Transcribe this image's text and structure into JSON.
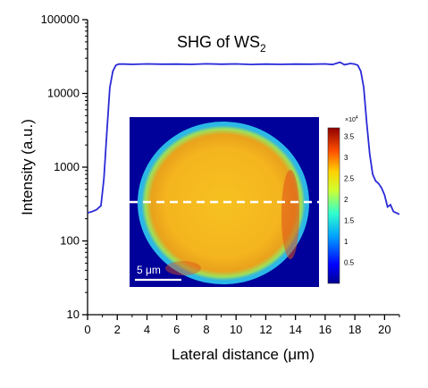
{
  "chart_data": {
    "type": "line",
    "title_main": "SHG of WS",
    "title_sub": "2",
    "xlabel": "Lateral distance (μm)",
    "ylabel": "Intensity (a.u.)",
    "xlim": [
      0,
      21
    ],
    "ylim": [
      10,
      100000
    ],
    "yscale": "log",
    "x_ticks": [
      0,
      2,
      4,
      6,
      8,
      10,
      12,
      14,
      16,
      18,
      20
    ],
    "y_ticks": [
      {
        "value": 10,
        "label": "10"
      },
      {
        "value": 100,
        "label": "100"
      },
      {
        "value": 1000,
        "label": "1000"
      },
      {
        "value": 10000,
        "label": "10000"
      },
      {
        "value": 100000,
        "label": "100000"
      }
    ],
    "line_color": "#2a2ad8",
    "series": [
      {
        "x": [
          0,
          0.3,
          0.6,
          0.9,
          1.1,
          1.3,
          1.5,
          1.7,
          1.9,
          2.1,
          2.5,
          3,
          4,
          5,
          6,
          7,
          8,
          9,
          10,
          11,
          12,
          13,
          14,
          15,
          16,
          16.5,
          17,
          17.3,
          17.7,
          18,
          18.2,
          18.4,
          18.6,
          18.8,
          19.0,
          19.2,
          19.4,
          19.6,
          19.8,
          20.0,
          20.2,
          20.4,
          20.6,
          21
        ],
        "y": [
          240,
          250,
          265,
          300,
          700,
          3000,
          12000,
          20000,
          24000,
          25000,
          25000,
          24800,
          25100,
          24900,
          25000,
          24800,
          25200,
          24900,
          25100,
          24700,
          25000,
          24800,
          25000,
          24900,
          25100,
          24600,
          26500,
          24500,
          25500,
          25000,
          24000,
          20000,
          12000,
          4000,
          1500,
          800,
          650,
          600,
          520,
          420,
          290,
          310,
          250,
          230
        ]
      }
    ],
    "inset": {
      "colorbar_ticks": [
        "3.5",
        "3",
        "2.5",
        "2",
        "1.5",
        "1",
        "0.5"
      ],
      "colorbar_multiplier": "×10",
      "colorbar_exponent": "4",
      "scale_bar_label": "5 μm"
    }
  }
}
